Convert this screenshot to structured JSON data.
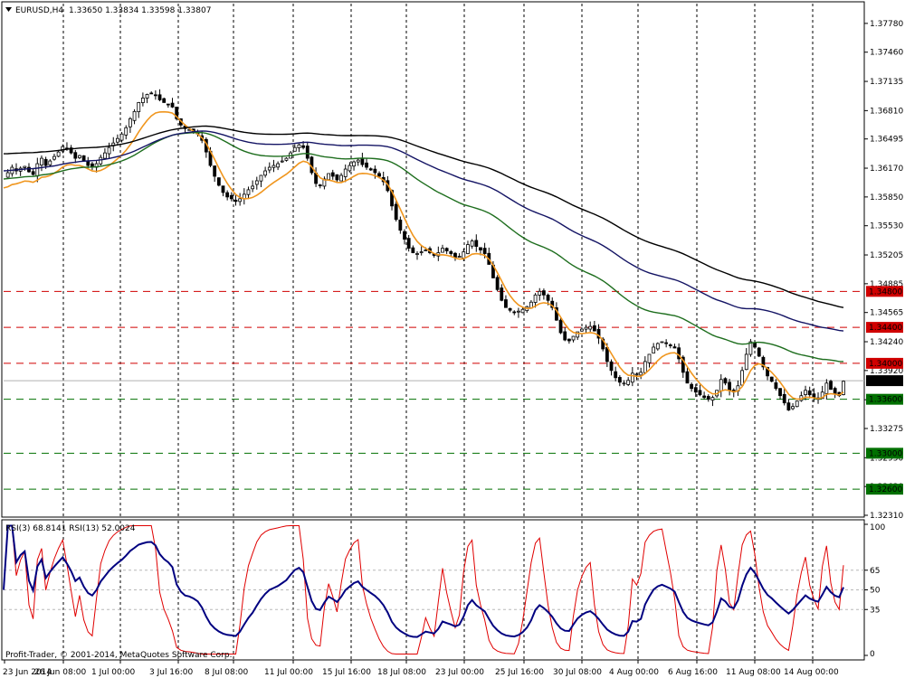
{
  "header": {
    "symbol": "EURUSD,H4",
    "ohlc": "1.33650 1.33834 1.33598 1.33807"
  },
  "rsi_header": "RSI(3) 68.8141  RSI(13) 52.0024",
  "copyright": "Profit-Trader, © 2001-2014, MetaQuotes Software Corp.",
  "colors": {
    "grid_vertical": "#000000",
    "candle": "#000000",
    "ma_fast": "#f0961e",
    "ma_green": "#1e6e1e",
    "ma_navy": "#141464",
    "ma_black": "#000000",
    "level_red": "#d00000",
    "level_green": "#007000",
    "rsi_fast": "#e00000",
    "rsi_slow": "#000080"
  },
  "chart_data": {
    "type": "candlestick",
    "symbol": "EURUSD",
    "timeframe": "H4",
    "price_axis": {
      "range": [
        1.3231,
        1.38
      ],
      "tick_labels": [
        "1.37780",
        "1.37460",
        "1.37135",
        "1.36810",
        "1.36495",
        "1.36170",
        "1.35850",
        "1.35530",
        "1.35205",
        "1.34885",
        "1.34565",
        "1.34240",
        "1.33920",
        "1.33595",
        "1.33275",
        "1.32950",
        "1.32630",
        "1.32310"
      ]
    },
    "time_axis": {
      "labels": [
        "23 Jun 2014",
        "26 Jun 08:00",
        "1 Jul 00:00",
        "3 Jul 16:00",
        "8 Jul 08:00",
        "11 Jul 00:00",
        "15 Jul 16:00",
        "18 Jul 08:00",
        "23 Jul 00:00",
        "25 Jul 16:00",
        "30 Jul 08:00",
        "4 Aug 00:00",
        "6 Aug 16:00",
        "11 Aug 08:00",
        "14 Aug 00:00"
      ],
      "grid": "dashed vertical"
    },
    "horizontal_levels": [
      {
        "value": 1.348,
        "label": "1.34800",
        "style": "red-dashed"
      },
      {
        "value": 1.344,
        "label": "1.34400",
        "style": "red-dashed"
      },
      {
        "value": 1.34,
        "label": "1.34000",
        "style": "red-dashed"
      },
      {
        "value": 1.336,
        "label": "1.33600",
        "style": "green-dashed"
      },
      {
        "value": 1.33,
        "label": "1.33000",
        "style": "green-dashed"
      },
      {
        "value": 1.326,
        "label": "1.32600",
        "style": "green-dashed"
      }
    ],
    "current_price": {
      "value": 1.33807,
      "label": "1.33807"
    },
    "closes": [
      1.3607,
      1.3612,
      1.3618,
      1.3614,
      1.3617,
      1.3619,
      1.3613,
      1.361,
      1.3622,
      1.3628,
      1.362,
      1.3625,
      1.363,
      1.3635,
      1.3641,
      1.3638,
      1.3634,
      1.3628,
      1.3631,
      1.3625,
      1.362,
      1.3618,
      1.3622,
      1.3629,
      1.3634,
      1.364,
      1.3645,
      1.365,
      1.3655,
      1.3662,
      1.3672,
      1.368,
      1.369,
      1.3695,
      1.3699,
      1.37,
      1.3698,
      1.3693,
      1.369,
      1.3688,
      1.3685,
      1.3672,
      1.3665,
      1.3661,
      1.366,
      1.3658,
      1.3655,
      1.3648,
      1.3635,
      1.362,
      1.3608,
      1.3598,
      1.359,
      1.3585,
      1.3583,
      1.358,
      1.3583,
      1.3588,
      1.3593,
      1.3597,
      1.3603,
      1.3609,
      1.3614,
      1.3618,
      1.362,
      1.3622,
      1.3625,
      1.3628,
      1.3634,
      1.364,
      1.3643,
      1.364,
      1.3628,
      1.3612,
      1.36,
      1.3598,
      1.3605,
      1.3611,
      1.3608,
      1.3604,
      1.3609,
      1.3616,
      1.362,
      1.3624,
      1.3626,
      1.3621,
      1.3618,
      1.3615,
      1.3612,
      1.3608,
      1.3602,
      1.3592,
      1.3575,
      1.356,
      1.3548,
      1.3538,
      1.3528,
      1.3523,
      1.3522,
      1.3524,
      1.3526,
      1.3523,
      1.352,
      1.3523,
      1.3528,
      1.3525,
      1.3522,
      1.3518,
      1.3519,
      1.3524,
      1.3532,
      1.3536,
      1.353,
      1.3526,
      1.3522,
      1.351,
      1.3495,
      1.3482,
      1.347,
      1.3462,
      1.3459,
      1.3457,
      1.3458,
      1.346,
      1.3463,
      1.3468,
      1.3476,
      1.348,
      1.3476,
      1.347,
      1.3462,
      1.3448,
      1.3434,
      1.3426,
      1.3425,
      1.343,
      1.3435,
      1.3438,
      1.344,
      1.3441,
      1.3436,
      1.3428,
      1.3416,
      1.3402,
      1.3392,
      1.3384,
      1.3379,
      1.3378,
      1.3381,
      1.3389,
      1.3388,
      1.339,
      1.3402,
      1.341,
      1.3418,
      1.3422,
      1.3424,
      1.3422,
      1.342,
      1.3417,
      1.3405,
      1.339,
      1.3378,
      1.3372,
      1.3368,
      1.3365,
      1.3362,
      1.336,
      1.3362,
      1.337,
      1.3382,
      1.3378,
      1.337,
      1.3368,
      1.3375,
      1.3392,
      1.341,
      1.3424,
      1.3418,
      1.3408,
      1.3396,
      1.3386,
      1.338,
      1.3372,
      1.3364,
      1.3356,
      1.3348,
      1.3352,
      1.3358,
      1.3364,
      1.337,
      1.3365,
      1.3362,
      1.336,
      1.3368,
      1.3378,
      1.3371,
      1.3366,
      1.3364,
      1.338
    ],
    "moving_averages": [
      {
        "style": "orange",
        "start": 1.3595,
        "end": 1.3368
      },
      {
        "style": "green",
        "start": 1.3605,
        "end": 1.3402
      },
      {
        "style": "navy",
        "start": 1.3614,
        "end": 1.3436
      },
      {
        "style": "black",
        "start": 1.3633,
        "end": 1.3462
      }
    ],
    "rsi_panel": {
      "range": [
        0,
        100
      ],
      "tick_labels": [
        "100",
        "65",
        "50",
        "35",
        "0"
      ],
      "levels": [
        65,
        50,
        35
      ],
      "rsi3_last": 68.8141,
      "rsi13_last": 52.0024
    }
  }
}
